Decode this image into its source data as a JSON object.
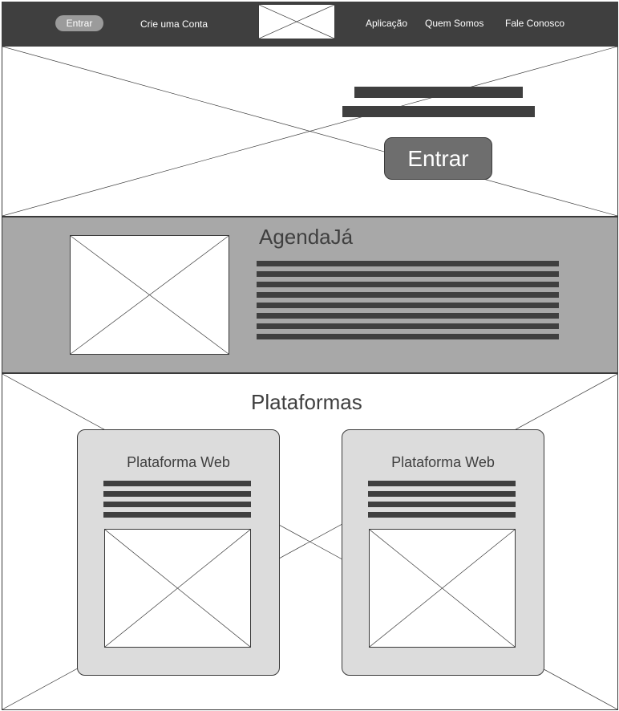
{
  "nav": {
    "login_label": "Entrar",
    "signup_label": "Crie uma Conta",
    "links": [
      "Aplicação",
      "Quem Somos",
      "Fale Conosco"
    ]
  },
  "hero": {
    "button_label": "Entrar"
  },
  "about": {
    "title": "AgendaJá"
  },
  "platforms": {
    "title": "Plataformas",
    "cards": [
      {
        "title": "Plataforma Web"
      },
      {
        "title": "Plataforma Web"
      }
    ]
  },
  "colors": {
    "dark": "#3f3f3f",
    "about_bg": "#a8a8a8",
    "card_bg": "#dcdcdc",
    "hero_button": "#6e6e6e",
    "nav_pill": "#9b9b9b"
  }
}
